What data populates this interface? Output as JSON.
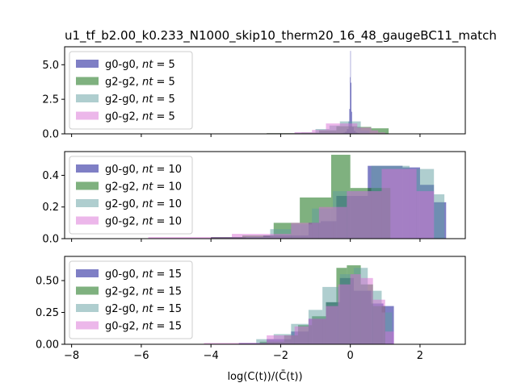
{
  "chart_data": {
    "type": "histogram",
    "title": "u1_tf_b2.00_k0.233_N1000_skip10_therm20_16_48_gaugeBC11_match",
    "xlabel": "log(C(t))/̄C(t))",
    "xlabel_display": "log(C(t))/(C̄(t))",
    "xlim": [
      -8.2,
      3.3
    ],
    "x_ticks": [
      -8,
      -6,
      -4,
      -2,
      0,
      2
    ],
    "x_tick_labels": [
      "−8",
      "−6",
      "−4",
      "−2",
      "0",
      "2"
    ],
    "colors": {
      "g0-g0": "#00008b",
      "g2-g2": "#006400",
      "g2-g0": "#5f9ea0",
      "g0-g2": "#da70d6"
    },
    "alpha": 0.5,
    "legend_location": "upper left",
    "panels": [
      {
        "ylim": [
          0,
          6.3
        ],
        "y_ticks": [
          0,
          2.5,
          5
        ],
        "y_tick_labels": [
          "0.0",
          "2.5",
          "5.0"
        ],
        "series": [
          {
            "name": "g0-g0",
            "legend_label": "g0-g0, nt = 5",
            "nt": "5",
            "edges": [
              -0.25,
              -0.2,
              -0.15,
              -0.1,
              -0.05,
              -0.03,
              -0.01,
              0.0,
              0.01,
              0.03,
              0.05,
              0.1,
              0.15,
              0.2,
              0.25
            ],
            "heights": [
              0.04,
              0.08,
              0.15,
              0.35,
              0.9,
              1.8,
              4.1,
              6.0,
              3.7,
              1.6,
              0.5,
              0.22,
              0.1,
              0.05
            ]
          },
          {
            "name": "g2-g2",
            "legend_label": "g2-g2, nt = 5",
            "nt": "5",
            "edges": [
              -2.4,
              -1.4,
              -0.9,
              -0.4,
              0.2,
              0.6,
              1.1
            ],
            "heights": [
              0.05,
              0.08,
              0.25,
              0.55,
              0.5,
              0.4
            ]
          },
          {
            "name": "g2-g0",
            "legend_label": "g2-g0, nt = 5",
            "nt": "5",
            "edges": [
              -1.6,
              -1.0,
              -0.6,
              -0.3,
              0.3,
              0.55
            ],
            "heights": [
              0.08,
              0.35,
              0.6,
              0.9,
              0.25
            ]
          },
          {
            "name": "g0-g2",
            "legend_label": "g0-g2, nt = 5",
            "nt": "5",
            "edges": [
              -2.4,
              -1.6,
              -1.1,
              -0.7,
              0.2,
              0.6,
              0.8,
              1.0
            ],
            "heights": [
              0.04,
              0.12,
              0.28,
              0.75,
              0.45,
              0.25,
              0.1
            ]
          }
        ]
      },
      {
        "ylim": [
          0,
          0.55
        ],
        "y_ticks": [
          0,
          0.2,
          0.4
        ],
        "y_tick_labels": [
          "0.0",
          "0.2",
          "0.4"
        ],
        "series": [
          {
            "name": "g0-g0",
            "legend_label": "g0-g0, nt = 10",
            "nt": "10",
            "edges": [
              -4.0,
              -2.5,
              -1.2,
              -0.85,
              -0.4,
              0.5,
              1.5,
              2.0,
              2.4,
              2.75
            ],
            "heights": [
              0.01,
              0.02,
              0.1,
              0.11,
              0.27,
              0.46,
              0.45,
              0.34,
              0.23
            ]
          },
          {
            "name": "g2-g2",
            "legend_label": "g2-g2, nt = 10",
            "nt": "10",
            "edges": [
              -4.0,
              -3.1,
              -2.2,
              -1.45,
              -0.55,
              0.0,
              1.15
            ],
            "heights": [
              0.01,
              0.02,
              0.1,
              0.26,
              0.53,
              0.32
            ]
          },
          {
            "name": "g2-g0",
            "legend_label": "g2-g0, nt = 10",
            "nt": "10",
            "edges": [
              -3.0,
              -2.3,
              -1.7,
              -1.1,
              -0.5,
              0.6,
              1.7,
              2.4,
              2.7
            ],
            "heights": [
              0.01,
              0.06,
              0.09,
              0.19,
              0.3,
              0.46,
              0.44,
              0.28
            ]
          },
          {
            "name": "g0-g2",
            "legend_label": "g0-g2, nt = 10",
            "nt": "10",
            "edges": [
              -5.8,
              -3.4,
              -1.7,
              -0.9,
              -0.1,
              0.9,
              1.9,
              2.4
            ],
            "heights": [
              0.01,
              0.03,
              0.1,
              0.2,
              0.3,
              0.44,
              0.3
            ]
          }
        ]
      },
      {
        "ylim": [
          0,
          0.69
        ],
        "y_ticks": [
          0,
          0.25,
          0.5
        ],
        "y_tick_labels": [
          "0.00",
          "0.25",
          "0.50"
        ],
        "series": [
          {
            "name": "g0-g0",
            "legend_label": "g0-g0, nt = 15",
            "nt": "15",
            "edges": [
              -3.2,
              -2.4,
              -1.7,
              -1.2,
              -0.7,
              -0.3,
              0.1,
              0.6,
              0.95,
              1.25
            ],
            "heights": [
              0.01,
              0.04,
              0.1,
              0.2,
              0.33,
              0.52,
              0.42,
              0.32,
              0.3
            ]
          },
          {
            "name": "g2-g2",
            "legend_label": "g2-g2, nt = 15",
            "nt": "15",
            "edges": [
              -2.6,
              -1.9,
              -1.5,
              -1.1,
              -0.7,
              -0.4,
              -0.1,
              0.3,
              0.65,
              1.0
            ],
            "heights": [
              0.02,
              0.07,
              0.15,
              0.22,
              0.33,
              0.6,
              0.62,
              0.47,
              0.3
            ]
          },
          {
            "name": "g2-g0",
            "legend_label": "g2-g0, nt = 15",
            "nt": "15",
            "edges": [
              -2.7,
              -2.2,
              -1.7,
              -1.2,
              -0.8,
              -0.3,
              0.1,
              0.5,
              0.9,
              1.2
            ],
            "heights": [
              0.04,
              0.08,
              0.16,
              0.27,
              0.45,
              0.55,
              0.6,
              0.42,
              0.25
            ]
          },
          {
            "name": "g0-g2",
            "legend_label": "g0-g2, nt = 15",
            "nt": "15",
            "edges": [
              -4.2,
              -2.4,
              -1.6,
              -1.2,
              -0.7,
              -0.35,
              0.0,
              0.3,
              0.65,
              1.0,
              1.25
            ],
            "heights": [
              0.01,
              0.07,
              0.14,
              0.2,
              0.3,
              0.47,
              0.55,
              0.52,
              0.35,
              0.1
            ]
          }
        ]
      }
    ]
  }
}
